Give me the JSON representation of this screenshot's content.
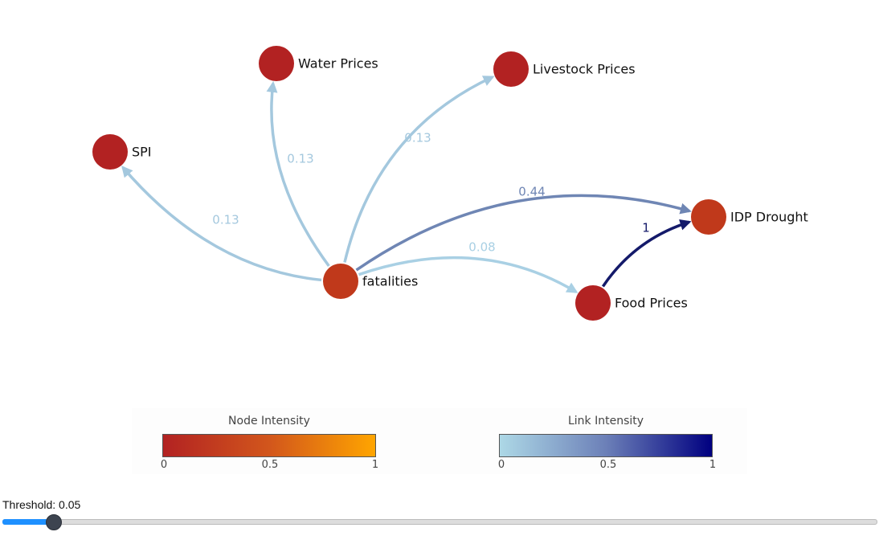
{
  "graph": {
    "nodes": [
      {
        "id": "water_prices",
        "label": "Water Prices",
        "color": "#b22222"
      },
      {
        "id": "livestock_prices",
        "label": "Livestock Prices",
        "color": "#b22222"
      },
      {
        "id": "spi",
        "label": "SPI",
        "color": "#b22222"
      },
      {
        "id": "idp_drought",
        "label": "IDP Drought",
        "color": "#c0391b"
      },
      {
        "id": "fatalities",
        "label": "fatalities",
        "color": "#c0391b"
      },
      {
        "id": "food_prices",
        "label": "Food Prices",
        "color": "#b22222"
      }
    ],
    "edges": [
      {
        "source": "fatalities",
        "target": "spi",
        "weight": 0.13,
        "label": "0.13",
        "color": "#a4c8de"
      },
      {
        "source": "fatalities",
        "target": "water_prices",
        "weight": 0.13,
        "label": "0.13",
        "color": "#a4c8de"
      },
      {
        "source": "fatalities",
        "target": "livestock_prices",
        "weight": 0.13,
        "label": "0.13",
        "color": "#a4c8de"
      },
      {
        "source": "fatalities",
        "target": "idp_drought",
        "weight": 0.44,
        "label": "0.44",
        "color": "#6f86b4"
      },
      {
        "source": "fatalities",
        "target": "food_prices",
        "weight": 0.08,
        "label": "0.08",
        "color": "#a9d0e4"
      },
      {
        "source": "food_prices",
        "target": "idp_drought",
        "weight": 1,
        "label": "1",
        "color": "#141a6a"
      }
    ]
  },
  "legend": {
    "node": {
      "title": "Node Intensity",
      "ticks": [
        "0",
        "0.5",
        "1"
      ],
      "colors": [
        "#b22222",
        "#ffa500"
      ]
    },
    "link": {
      "title": "Link Intensity",
      "ticks": [
        "0",
        "0.5",
        "1"
      ],
      "colors": [
        "#add8e6",
        "#000080"
      ]
    }
  },
  "slider": {
    "label": "Threshold: 0.05",
    "value": 0.05,
    "min": 0,
    "max": 1
  }
}
